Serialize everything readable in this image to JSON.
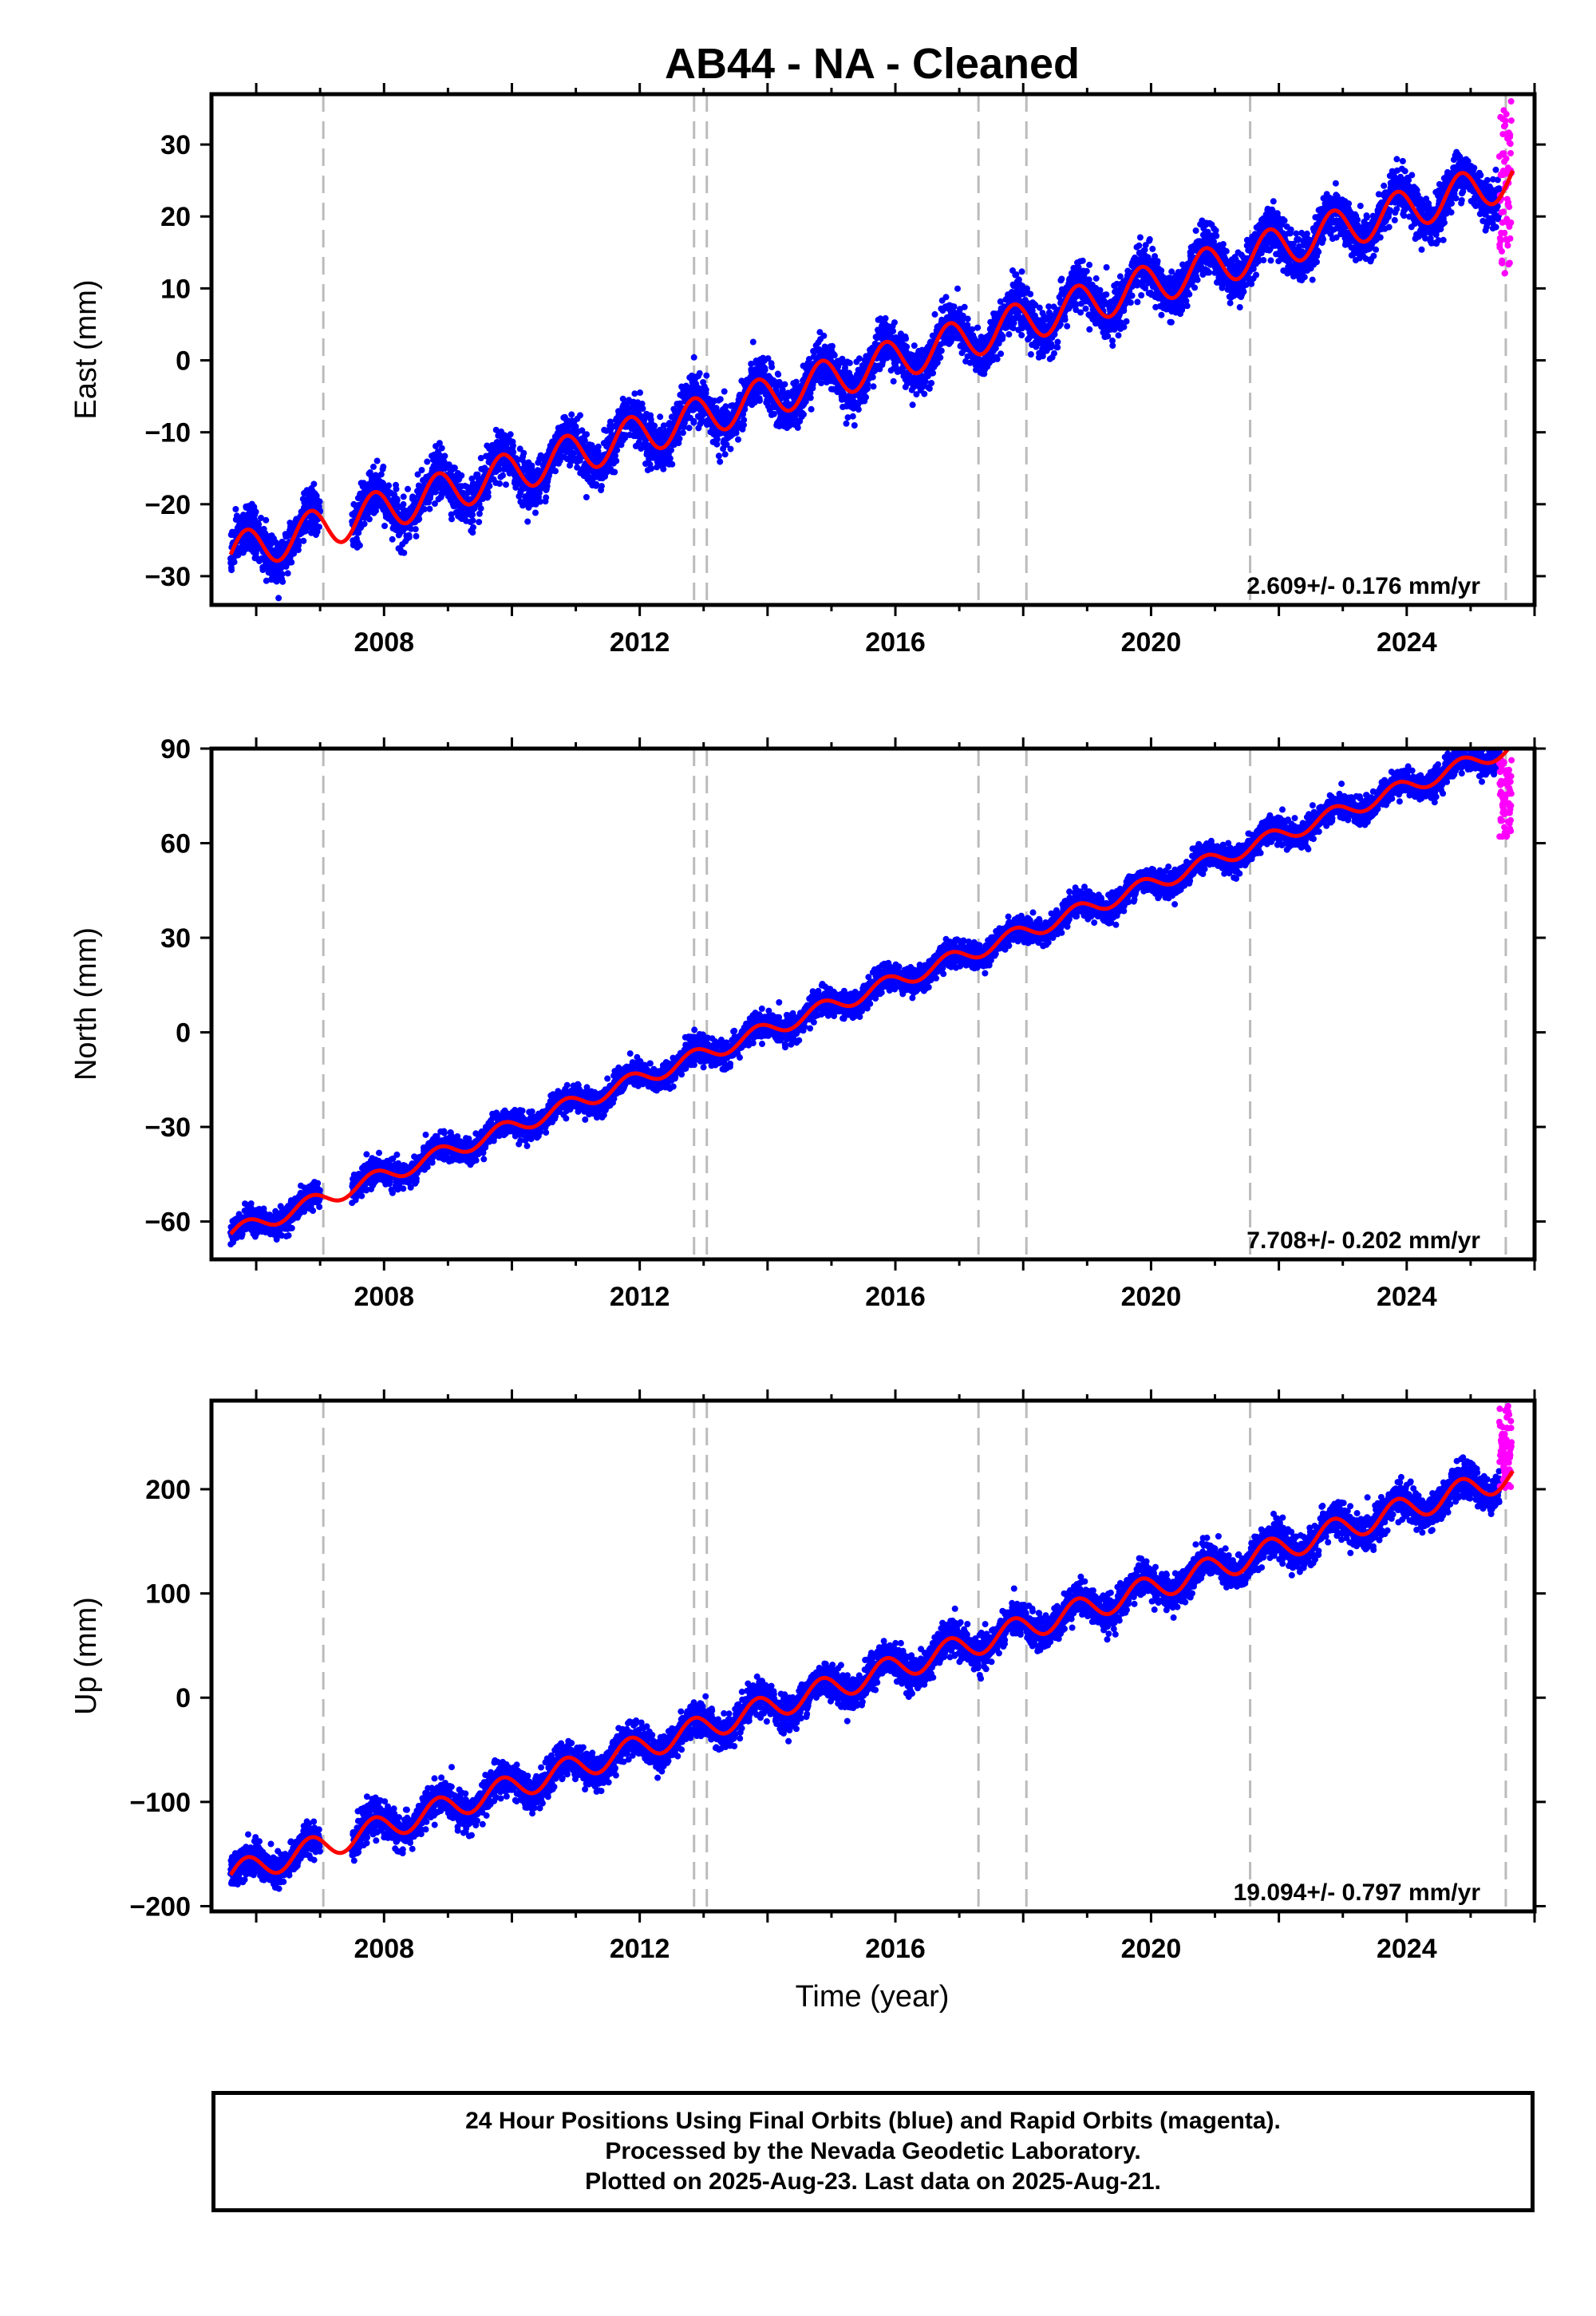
{
  "title": "AB44  - NA - Cleaned",
  "xlabel": "Time (year)",
  "caption": [
    "24 Hour Positions Using Final Orbits (blue) and Rapid Orbits (magenta).",
    "Processed by the Nevada Geodetic Laboratory.",
    "Plotted on 2025-Aug-23. Last data on 2025-Aug-21."
  ],
  "colors": {
    "final": "#0000ff",
    "rapid": "#ff00ff",
    "model": "#ff0000",
    "steps": "#bbbbbb"
  },
  "chart_data": [
    {
      "type": "scatter",
      "component": "east",
      "ylabel": "East (mm)",
      "rate_label": "2.609+/- 0.176 mm/yr",
      "xlim": [
        2005.3,
        2026.0
      ],
      "ylim": [
        -34,
        37
      ],
      "xticks": [
        2008,
        2012,
        2016,
        2020,
        2024
      ],
      "yticks": [
        -30,
        -20,
        -10,
        0,
        10,
        20,
        30
      ],
      "ytick_labels": [
        "−30",
        "−20",
        "−10",
        "0",
        "10",
        "20",
        "30"
      ],
      "data_range": [
        2005.6,
        2025.45
      ],
      "trend": {
        "ref_year": 2005.6,
        "offset": -27,
        "rate": 2.609,
        "annual_amp": 2.8
      },
      "scatter_sd": 1.6,
      "data_gap": [
        2007.0,
        2007.5
      ],
      "rapid": {
        "x_start": 2025.45,
        "x_end": 2025.64,
        "y_min": 12,
        "y_max": 36
      },
      "steps": [
        2007.05,
        2012.85,
        2013.05,
        2017.3,
        2018.05,
        2021.55,
        2025.55
      ]
    },
    {
      "type": "scatter",
      "component": "north",
      "ylabel": "North (mm)",
      "rate_label": "7.708+/- 0.202 mm/yr",
      "xlim": [
        2005.3,
        2026.0
      ],
      "ylim": [
        -72,
        90
      ],
      "xticks": [
        2008,
        2012,
        2016,
        2020,
        2024
      ],
      "yticks": [
        -60,
        -30,
        0,
        30,
        60,
        90
      ],
      "ytick_labels": [
        "−60",
        "−30",
        "0",
        "30",
        "60",
        "90"
      ],
      "data_range": [
        2005.6,
        2025.45
      ],
      "trend": {
        "ref_year": 2005.6,
        "offset": -64,
        "rate": 7.708,
        "annual_amp": 2.5
      },
      "scatter_sd": 2.0,
      "data_gap": [
        2007.0,
        2007.5
      ],
      "rapid": {
        "x_start": 2025.45,
        "x_end": 2025.64,
        "y_min": 62,
        "y_max": 87
      },
      "steps": [
        2007.05,
        2012.85,
        2013.05,
        2017.3,
        2018.05,
        2021.55,
        2025.55
      ]
    },
    {
      "type": "scatter",
      "component": "up",
      "ylabel": "Up (mm)",
      "rate_label": "19.094+/- 0.797 mm/yr",
      "xlim": [
        2005.3,
        2026.0
      ],
      "ylim": [
        -205,
        285
      ],
      "xticks": [
        2008,
        2012,
        2016,
        2020,
        2024
      ],
      "yticks": [
        -200,
        -100,
        0,
        100,
        200
      ],
      "ytick_labels": [
        "−200",
        "−100",
        "0",
        "100",
        "200"
      ],
      "data_range": [
        2005.6,
        2025.45
      ],
      "trend": {
        "ref_year": 2005.6,
        "offset": -170,
        "rate": 19.094,
        "annual_amp": 12
      },
      "scatter_sd": 8,
      "data_gap": [
        2007.0,
        2007.5
      ],
      "rapid": {
        "x_start": 2025.45,
        "x_end": 2025.64,
        "y_min": 200,
        "y_max": 280
      },
      "steps": [
        2007.05,
        2012.85,
        2013.05,
        2017.3,
        2018.05,
        2021.55,
        2025.55
      ]
    }
  ]
}
